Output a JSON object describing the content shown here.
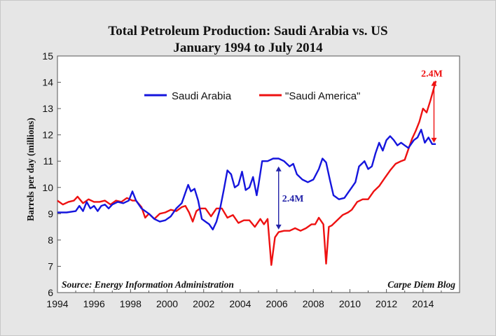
{
  "chart_data": {
    "type": "line",
    "title": "Total Petroleum Production: Saudi Arabia vs. US",
    "subtitle": "January 1994 to July 2014",
    "xlabel": "",
    "ylabel": "Barrels per day (millions)",
    "xlim": [
      1994,
      2016
    ],
    "ylim": [
      6,
      15
    ],
    "x_ticks": [
      "1994",
      "1996",
      "1998",
      "2000",
      "2002",
      "2004",
      "2006",
      "2008",
      "2010",
      "2012",
      "2014"
    ],
    "y_ticks": [
      "6",
      "7",
      "8",
      "9",
      "10",
      "11",
      "12",
      "13",
      "14",
      "15"
    ],
    "grid": false,
    "legend_position": "top-center",
    "source": "Source: Energy Information Administration",
    "credit": "Carpe Diem Blog",
    "annotations": [
      {
        "text": "2.4M",
        "x": 2006.1,
        "y_from": 8.4,
        "y_to": 10.8,
        "color": "#2323a8"
      },
      {
        "text": "2.4M",
        "x": 2014.6,
        "y_from": 11.7,
        "y_to": 14.05,
        "color": "#ee1111"
      }
    ],
    "series": [
      {
        "name": "Saudi Arabia",
        "color": "#1515dd",
        "points": [
          [
            1994.0,
            9.05
          ],
          [
            1994.5,
            9.05
          ],
          [
            1995.0,
            9.1
          ],
          [
            1995.2,
            9.3
          ],
          [
            1995.4,
            9.1
          ],
          [
            1995.6,
            9.45
          ],
          [
            1995.8,
            9.2
          ],
          [
            1996.0,
            9.3
          ],
          [
            1996.2,
            9.1
          ],
          [
            1996.4,
            9.3
          ],
          [
            1996.6,
            9.35
          ],
          [
            1996.8,
            9.2
          ],
          [
            1997.0,
            9.35
          ],
          [
            1997.3,
            9.45
          ],
          [
            1997.6,
            9.4
          ],
          [
            1997.9,
            9.5
          ],
          [
            1998.1,
            9.85
          ],
          [
            1998.3,
            9.5
          ],
          [
            1998.6,
            9.2
          ],
          [
            1999.0,
            9.0
          ],
          [
            1999.3,
            8.8
          ],
          [
            1999.6,
            8.7
          ],
          [
            1999.9,
            8.75
          ],
          [
            2000.2,
            8.9
          ],
          [
            2000.5,
            9.2
          ],
          [
            2000.8,
            9.4
          ],
          [
            2001.0,
            9.8
          ],
          [
            2001.15,
            10.1
          ],
          [
            2001.3,
            9.85
          ],
          [
            2001.5,
            9.95
          ],
          [
            2001.7,
            9.5
          ],
          [
            2001.9,
            8.8
          ],
          [
            2002.1,
            8.7
          ],
          [
            2002.3,
            8.6
          ],
          [
            2002.5,
            8.4
          ],
          [
            2002.7,
            8.7
          ],
          [
            2002.9,
            9.2
          ],
          [
            2003.1,
            9.9
          ],
          [
            2003.3,
            10.65
          ],
          [
            2003.5,
            10.5
          ],
          [
            2003.7,
            10.0
          ],
          [
            2003.9,
            10.1
          ],
          [
            2004.1,
            10.6
          ],
          [
            2004.3,
            9.9
          ],
          [
            2004.5,
            10.0
          ],
          [
            2004.7,
            10.4
          ],
          [
            2004.9,
            9.7
          ],
          [
            2005.0,
            10.1
          ],
          [
            2005.2,
            11.0
          ],
          [
            2005.5,
            11.0
          ],
          [
            2005.8,
            11.1
          ],
          [
            2006.1,
            11.1
          ],
          [
            2006.4,
            11.0
          ],
          [
            2006.7,
            10.8
          ],
          [
            2006.9,
            10.9
          ],
          [
            2007.1,
            10.5
          ],
          [
            2007.4,
            10.3
          ],
          [
            2007.7,
            10.2
          ],
          [
            2008.0,
            10.3
          ],
          [
            2008.3,
            10.7
          ],
          [
            2008.5,
            11.1
          ],
          [
            2008.7,
            10.95
          ],
          [
            2008.9,
            10.3
          ],
          [
            2009.1,
            9.7
          ],
          [
            2009.4,
            9.55
          ],
          [
            2009.7,
            9.6
          ],
          [
            2009.9,
            9.8
          ],
          [
            2010.1,
            10.0
          ],
          [
            2010.3,
            10.2
          ],
          [
            2010.5,
            10.8
          ],
          [
            2010.8,
            11.0
          ],
          [
            2011.0,
            10.7
          ],
          [
            2011.2,
            10.8
          ],
          [
            2011.4,
            11.3
          ],
          [
            2011.6,
            11.7
          ],
          [
            2011.8,
            11.4
          ],
          [
            2012.0,
            11.8
          ],
          [
            2012.2,
            11.95
          ],
          [
            2012.4,
            11.8
          ],
          [
            2012.6,
            11.6
          ],
          [
            2012.8,
            11.7
          ],
          [
            2013.0,
            11.6
          ],
          [
            2013.2,
            11.5
          ],
          [
            2013.5,
            11.8
          ],
          [
            2013.7,
            11.9
          ],
          [
            2013.9,
            12.2
          ],
          [
            2014.1,
            11.7
          ],
          [
            2014.3,
            11.9
          ],
          [
            2014.5,
            11.65
          ],
          [
            2014.7,
            11.65
          ]
        ]
      },
      {
        "name": "\"Saudi America\"",
        "color": "#ee1111",
        "points": [
          [
            1994.0,
            9.5
          ],
          [
            1994.3,
            9.35
          ],
          [
            1994.6,
            9.45
          ],
          [
            1994.9,
            9.5
          ],
          [
            1995.1,
            9.65
          ],
          [
            1995.4,
            9.4
          ],
          [
            1995.7,
            9.55
          ],
          [
            1996.0,
            9.45
          ],
          [
            1996.3,
            9.45
          ],
          [
            1996.6,
            9.5
          ],
          [
            1996.9,
            9.35
          ],
          [
            1997.2,
            9.5
          ],
          [
            1997.5,
            9.45
          ],
          [
            1997.8,
            9.6
          ],
          [
            1998.1,
            9.5
          ],
          [
            1998.3,
            9.5
          ],
          [
            1998.6,
            9.25
          ],
          [
            1998.8,
            8.85
          ],
          [
            1999.0,
            9.0
          ],
          [
            1999.3,
            8.8
          ],
          [
            1999.6,
            9.0
          ],
          [
            1999.9,
            9.05
          ],
          [
            2000.2,
            9.15
          ],
          [
            2000.5,
            9.1
          ],
          [
            2000.8,
            9.25
          ],
          [
            2001.0,
            9.3
          ],
          [
            2001.2,
            9.05
          ],
          [
            2001.4,
            8.7
          ],
          [
            2001.6,
            9.1
          ],
          [
            2001.8,
            9.2
          ],
          [
            2002.1,
            9.2
          ],
          [
            2002.4,
            8.9
          ],
          [
            2002.7,
            9.2
          ],
          [
            2003.0,
            9.2
          ],
          [
            2003.3,
            8.85
          ],
          [
            2003.6,
            8.95
          ],
          [
            2003.9,
            8.65
          ],
          [
            2004.2,
            8.75
          ],
          [
            2004.5,
            8.75
          ],
          [
            2004.8,
            8.5
          ],
          [
            2005.1,
            8.8
          ],
          [
            2005.3,
            8.6
          ],
          [
            2005.5,
            8.8
          ],
          [
            2005.7,
            7.05
          ],
          [
            2005.9,
            8.1
          ],
          [
            2006.1,
            8.3
          ],
          [
            2006.4,
            8.35
          ],
          [
            2006.7,
            8.35
          ],
          [
            2007.0,
            8.45
          ],
          [
            2007.3,
            8.35
          ],
          [
            2007.6,
            8.45
          ],
          [
            2007.9,
            8.6
          ],
          [
            2008.1,
            8.6
          ],
          [
            2008.3,
            8.85
          ],
          [
            2008.55,
            8.6
          ],
          [
            2008.7,
            7.1
          ],
          [
            2008.85,
            8.5
          ],
          [
            2009.0,
            8.55
          ],
          [
            2009.3,
            8.75
          ],
          [
            2009.6,
            8.95
          ],
          [
            2009.9,
            9.05
          ],
          [
            2010.1,
            9.15
          ],
          [
            2010.4,
            9.45
          ],
          [
            2010.7,
            9.55
          ],
          [
            2011.0,
            9.55
          ],
          [
            2011.3,
            9.85
          ],
          [
            2011.6,
            10.05
          ],
          [
            2011.9,
            10.35
          ],
          [
            2012.2,
            10.65
          ],
          [
            2012.5,
            10.9
          ],
          [
            2012.8,
            11.0
          ],
          [
            2013.0,
            11.05
          ],
          [
            2013.2,
            11.45
          ],
          [
            2013.4,
            11.85
          ],
          [
            2013.6,
            12.15
          ],
          [
            2013.8,
            12.5
          ],
          [
            2014.0,
            13.0
          ],
          [
            2014.2,
            12.85
          ],
          [
            2014.4,
            13.3
          ],
          [
            2014.6,
            13.8
          ],
          [
            2014.7,
            14.05
          ]
        ]
      }
    ]
  }
}
